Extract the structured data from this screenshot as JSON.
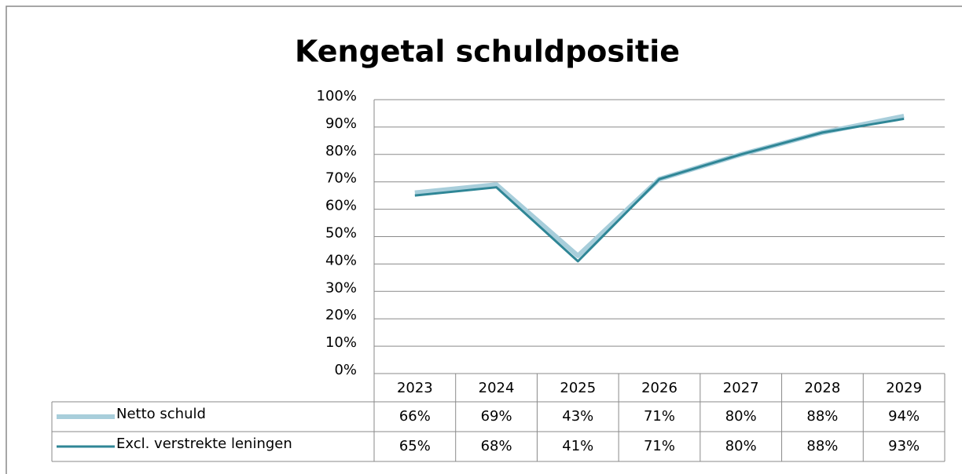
{
  "chart_data": {
    "type": "line",
    "title": "Kengetal schuldpositie",
    "categories": [
      "2023",
      "2024",
      "2025",
      "2026",
      "2027",
      "2028",
      "2029"
    ],
    "series": [
      {
        "name": "Netto schuld",
        "color": "#a8cedb",
        "values": [
          66,
          69,
          43,
          71,
          80,
          88,
          94
        ],
        "value_labels": [
          "66%",
          "69%",
          "43%",
          "71%",
          "80%",
          "88%",
          "94%"
        ]
      },
      {
        "name": "Excl. verstrekte leningen",
        "color": "#2f8696",
        "values": [
          65,
          68,
          41,
          71,
          80,
          88,
          93
        ],
        "value_labels": [
          "65%",
          "68%",
          "41%",
          "71%",
          "80%",
          "88%",
          "93%"
        ]
      }
    ],
    "ylim": [
      0,
      100
    ],
    "yticks": [
      {
        "value": 0,
        "label": "0%"
      },
      {
        "value": 10,
        "label": "10%"
      },
      {
        "value": 20,
        "label": "20%"
      },
      {
        "value": 30,
        "label": "30%"
      },
      {
        "value": 40,
        "label": "40%"
      },
      {
        "value": 50,
        "label": "50%"
      },
      {
        "value": 60,
        "label": "60%"
      },
      {
        "value": 70,
        "label": "70%"
      },
      {
        "value": 80,
        "label": "80%"
      },
      {
        "value": 90,
        "label": "90%"
      },
      {
        "value": 100,
        "label": "100%"
      }
    ],
    "grid": true,
    "data_table": true
  }
}
